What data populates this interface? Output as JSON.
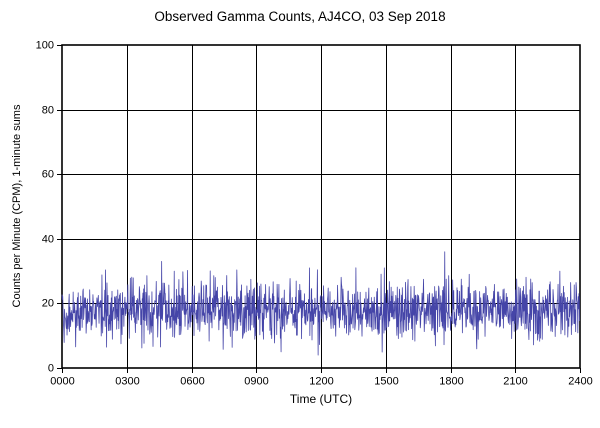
{
  "chart_data": {
    "type": "line",
    "title": "Observed Gamma Counts, AJ4CO, 03 Sep 2018",
    "xlabel": "Time (UTC)",
    "ylabel": "Counts per Minute (CPM), 1-minute sums",
    "x_ticks": [
      "0000",
      "0300",
      "0600",
      "0900",
      "1200",
      "1500",
      "1800",
      "2100",
      "2400"
    ],
    "y_ticks": [
      0,
      20,
      40,
      60,
      80,
      100
    ],
    "xlim_minutes": [
      0,
      1440
    ],
    "ylim": [
      0,
      100
    ],
    "grid": true,
    "legend": "none",
    "line_color": "#4545a8",
    "axis_color": "#000000",
    "background_color": "#ffffff",
    "series": [
      {
        "name": "observed gamma counts",
        "sample_interval_minutes": 1,
        "n_samples": 1440,
        "distribution": {
          "mean": 17.8,
          "std": 4.3,
          "min": 4,
          "max": 36,
          "seed": 20180903
        },
        "notable_points": [
          {
            "time": "0437",
            "value": 33
          },
          {
            "time": "0512",
            "value": 30
          },
          {
            "time": "1009",
            "value": 5
          },
          {
            "time": "1152",
            "value": 4
          },
          {
            "time": "1744",
            "value": 36
          },
          {
            "time": "2304",
            "value": 30
          }
        ]
      }
    ]
  }
}
